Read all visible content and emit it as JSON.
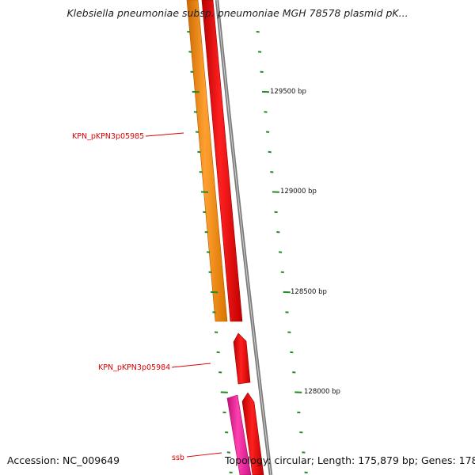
{
  "title": "Klebsiella pneumoniae subsp. pneumoniae MGH 78578 plasmid pK...",
  "footer": {
    "accession": "Accession: NC_009649",
    "summary": "Topology: circular; Length: 175,879 bp; Genes: 178"
  },
  "scale": {
    "labels": [
      "129500 bp",
      "129000 bp",
      "128500 bp",
      "128000 bp"
    ]
  },
  "genes": [
    {
      "label": "KPN_pKPN3p05985"
    },
    {
      "label": "KPN_pKPN3p05984"
    },
    {
      "label": "ssb"
    }
  ],
  "colors": {
    "orange_track": "#ff8c00",
    "red_track": "#ee0000",
    "magenta_track": "#ff1fa0",
    "backbone": "#888888",
    "ticks": "#228b22",
    "gene_label": "#dd0000"
  }
}
